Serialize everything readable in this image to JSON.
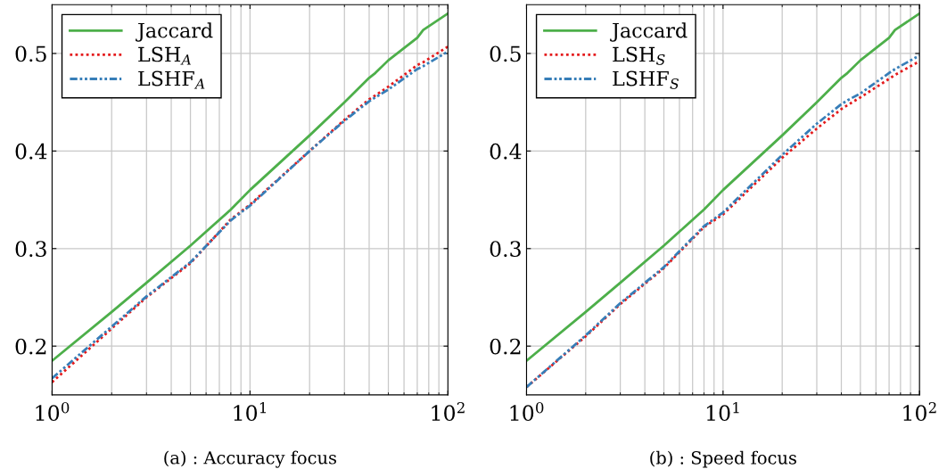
{
  "chart_data": [
    {
      "type": "line",
      "x": [
        1,
        2,
        3,
        5,
        8,
        10,
        20,
        30,
        40,
        43,
        50,
        70,
        75,
        100
      ],
      "series": [
        {
          "name": "Jaccard",
          "color": "#4daf4a",
          "line_style": "solid",
          "values": [
            0.185,
            0.235,
            0.265,
            0.303,
            0.34,
            0.36,
            0.416,
            0.45,
            0.475,
            0.48,
            0.493,
            0.516,
            0.524,
            0.541
          ]
        },
        {
          "name": "LSH$_{A}$",
          "color": "#e41a1c",
          "line_style": "dotted",
          "values": [
            0.163,
            0.218,
            0.25,
            0.285,
            0.33,
            0.345,
            0.4,
            0.432,
            0.453,
            0.457,
            0.466,
            0.488,
            0.491,
            0.507
          ]
        },
        {
          "name": "LSHF$_{A}$",
          "color": "#377eb8",
          "line_style": "dashdotdotted",
          "values": [
            0.167,
            0.22,
            0.251,
            0.286,
            0.329,
            0.344,
            0.4,
            0.431,
            0.451,
            0.455,
            0.463,
            0.484,
            0.487,
            0.502
          ]
        }
      ],
      "xlim": [
        1,
        100
      ],
      "ylim": [
        0.15,
        0.55
      ],
      "log": "x",
      "xticks": [
        {
          "value": 1,
          "label": "10$^{0}$"
        },
        {
          "value": 10,
          "label": "10$^{1}$"
        },
        {
          "value": 100,
          "label": "10$^{2}$"
        }
      ],
      "yticks": [
        0.2,
        0.3,
        0.4,
        0.5
      ],
      "grid": true,
      "legend": "top left",
      "annotations": [
        "(a) : Accuracy focus"
      ]
    },
    {
      "type": "line",
      "x": [
        1,
        2,
        3,
        5,
        8,
        10,
        20,
        30,
        40,
        43,
        50,
        70,
        75,
        100
      ],
      "series": [
        {
          "name": "Jaccard",
          "color": "#4daf4a",
          "line_style": "solid",
          "values": [
            0.185,
            0.235,
            0.265,
            0.303,
            0.34,
            0.36,
            0.416,
            0.45,
            0.475,
            0.48,
            0.493,
            0.516,
            0.524,
            0.541
          ]
        },
        {
          "name": "LSH$_{S}$",
          "color": "#e41a1c",
          "line_style": "dotted",
          "values": [
            0.158,
            0.21,
            0.243,
            0.28,
            0.322,
            0.335,
            0.393,
            0.423,
            0.443,
            0.447,
            0.455,
            0.474,
            0.478,
            0.492
          ]
        },
        {
          "name": "LSHF$_{S}$",
          "color": "#377eb8",
          "line_style": "dashdotdotted",
          "values": [
            0.158,
            0.211,
            0.244,
            0.281,
            0.323,
            0.337,
            0.396,
            0.428,
            0.448,
            0.452,
            0.459,
            0.48,
            0.484,
            0.498
          ]
        }
      ],
      "xlim": [
        1,
        100
      ],
      "ylim": [
        0.15,
        0.55
      ],
      "log": "x",
      "xticks": [
        {
          "value": 1,
          "label": "10$^{0}$"
        },
        {
          "value": 10,
          "label": "10$^{1}$"
        },
        {
          "value": 100,
          "label": "10$^{2}$"
        }
      ],
      "yticks": [
        0.2,
        0.3,
        0.4,
        0.5
      ],
      "grid": true,
      "legend": "top left",
      "annotations": [
        "(b) : Speed focus"
      ]
    }
  ]
}
